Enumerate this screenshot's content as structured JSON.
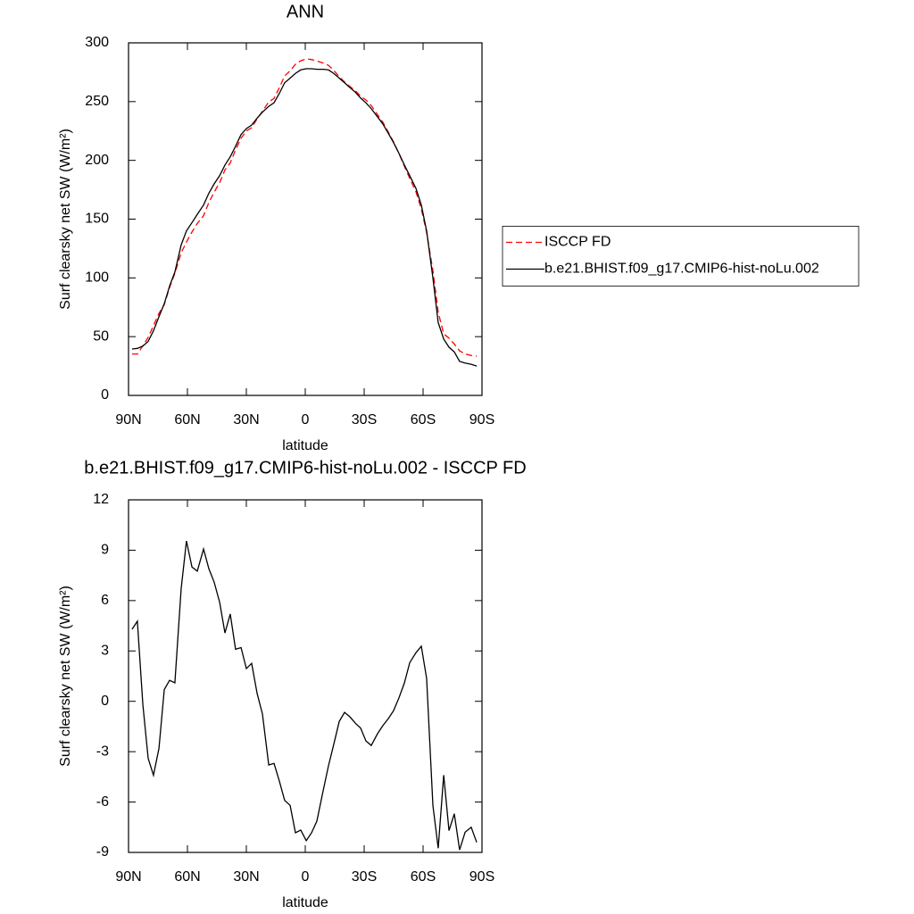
{
  "chart_data": [
    {
      "type": "line",
      "title": "ANN",
      "x_label": "latitude",
      "y_label": "Surf clearsky net SW (W/m²)",
      "xlim": [
        90,
        -90
      ],
      "xticks": [
        {
          "value": 90,
          "label": "90N"
        },
        {
          "value": 60,
          "label": "60N"
        },
        {
          "value": 30,
          "label": "30N"
        },
        0,
        {
          "value": -30,
          "label": "30S"
        },
        {
          "value": -60,
          "label": "60S"
        },
        {
          "value": -90,
          "label": "90S"
        }
      ],
      "ylim": [
        0,
        300
      ],
      "yticks": [
        0,
        50,
        100,
        150,
        200,
        250,
        300
      ],
      "legend": "right",
      "x": [
        88.2,
        85.5,
        82.7,
        80,
        77.3,
        74.5,
        71.8,
        69.1,
        66.4,
        63.2,
        60.5,
        57.7,
        55,
        51.8,
        49.1,
        46.4,
        43.6,
        40.9,
        38.2,
        35.5,
        32.7,
        30,
        27.3,
        24.5,
        21.8,
        18.6,
        15.9,
        13.2,
        10.5,
        7.7,
        5,
        2.3,
        -0.5,
        -3.2,
        -5.9,
        -9.1,
        -11.8,
        -14.5,
        -17.3,
        -20,
        -22.7,
        -25.5,
        -28.2,
        -30.9,
        -33.6,
        -36.8,
        -39.5,
        -42.3,
        -45,
        -47.7,
        -50.5,
        -53.2,
        -56.4,
        -59.1,
        -61.8,
        -65,
        -67.7,
        -70.5,
        -73.2,
        -75.9,
        -78.6,
        -81.4,
        -84.5,
        -87.3
      ],
      "series": [
        {
          "name": "ISCCP FD",
          "color": "#ff0000",
          "line_style": "dashed",
          "values": [
            35.2,
            35.2,
            42.2,
            49.4,
            59.4,
            69.8,
            77.3,
            91.8,
            103.9,
            121.3,
            130.5,
            139,
            146.3,
            152.9,
            164.1,
            172.9,
            181.1,
            191.9,
            197.8,
            208.9,
            218.8,
            225.1,
            227.7,
            235.5,
            241.8,
            249.8,
            252.7,
            261.8,
            271.9,
            276.2,
            281.8,
            284.7,
            286.3,
            285.8,
            284.6,
            282.8,
            280.9,
            276.6,
            271.2,
            266.7,
            262.9,
            259.3,
            254.6,
            251.4,
            246.6,
            238.9,
            232.5,
            224,
            215.6,
            205.8,
            194.9,
            184.7,
            173.1,
            158.7,
            138.6,
            106.2,
            70.8,
            52.4,
            48.7,
            43.7,
            37.9,
            35.3,
            34,
            33.4
          ]
        },
        {
          "name": "b.e21.BHIST.f09_g17.CMIP6-hist-noLu.002",
          "color": "#000000",
          "line_style": "solid",
          "values": [
            39.5,
            40,
            42,
            46,
            55,
            67,
            78,
            93,
            105,
            128,
            140,
            147,
            154,
            162,
            172,
            180,
            187,
            196,
            203,
            212,
            222,
            227,
            230,
            236,
            241,
            246,
            249,
            257,
            266,
            270,
            274,
            277,
            278,
            278,
            277.5,
            277.5,
            277,
            274,
            270,
            266,
            262,
            258,
            253,
            249,
            244,
            237,
            231,
            223,
            215,
            206,
            196,
            187,
            176,
            162,
            140,
            100,
            62,
            48,
            41,
            37,
            29,
            27.5,
            26.5,
            25
          ]
        }
      ]
    },
    {
      "type": "line",
      "title": "b.e21.BHIST.f09_g17.CMIP6-hist-noLu.002 - ISCCP FD",
      "x_label": "latitude",
      "y_label": "Surf clearsky net SW (W/m²)",
      "xlim": [
        90,
        -90
      ],
      "xticks": [
        {
          "value": 90,
          "label": "90N"
        },
        {
          "value": 60,
          "label": "60N"
        },
        {
          "value": 30,
          "label": "30N"
        },
        0,
        {
          "value": -30,
          "label": "30S"
        },
        {
          "value": -60,
          "label": "60S"
        },
        {
          "value": -90,
          "label": "90S"
        }
      ],
      "ylim": [
        -9,
        12
      ],
      "yticks": [
        -9,
        -6,
        -3,
        0,
        3,
        6,
        9,
        12
      ],
      "x": [
        88.2,
        85.5,
        82.7,
        80,
        77.3,
        74.5,
        71.8,
        69.1,
        66.4,
        63.2,
        60.5,
        57.7,
        55,
        51.8,
        49.1,
        46.4,
        43.6,
        40.9,
        38.2,
        35.5,
        32.7,
        30,
        27.3,
        24.5,
        21.8,
        18.6,
        15.9,
        13.2,
        10.5,
        7.7,
        5,
        2.3,
        -0.5,
        -3.2,
        -5.9,
        -9.1,
        -11.8,
        -14.5,
        -17.3,
        -20,
        -22.7,
        -25.5,
        -28.2,
        -30.9,
        -33.6,
        -36.8,
        -39.5,
        -42.3,
        -45,
        -47.7,
        -50.5,
        -53.2,
        -56.4,
        -59.1,
        -61.8,
        -65,
        -67.7,
        -70.5,
        -73.2,
        -75.9,
        -78.6,
        -81.4,
        -84.5,
        -87.3
      ],
      "series": [
        {
          "color": "#000000",
          "line_style": "solid",
          "values": [
            4.29,
            4.77,
            -0.2,
            -3.4,
            -4.4,
            -2.8,
            0.7,
            1.25,
            1.1,
            6.7,
            9.55,
            8.0,
            7.75,
            9.07,
            7.9,
            7.1,
            5.9,
            4.07,
            5.2,
            3.1,
            3.2,
            1.95,
            2.26,
            0.46,
            -0.76,
            -3.79,
            -3.7,
            -4.75,
            -5.9,
            -6.2,
            -7.83,
            -7.67,
            -8.3,
            -7.83,
            -7.14,
            -5.33,
            -3.85,
            -2.57,
            -1.2,
            -0.66,
            -0.92,
            -1.3,
            -1.6,
            -2.36,
            -2.63,
            -1.93,
            -1.45,
            -1.03,
            -0.55,
            0.2,
            1.1,
            2.3,
            2.9,
            3.28,
            1.37,
            -6.2,
            -8.75,
            -4.4,
            -7.7,
            -6.7,
            -8.85,
            -7.8,
            -7.5,
            -8.4
          ]
        }
      ]
    }
  ]
}
